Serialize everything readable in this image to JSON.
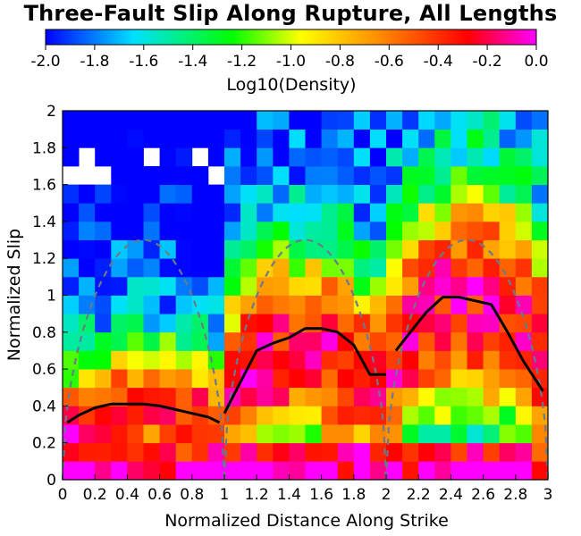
{
  "chart_data": {
    "type": "heatmap",
    "title": "Three-Fault Slip Along Rupture, All Lengths",
    "xlabel": "Normalized Distance Along Strike",
    "ylabel": "Normalized Slip",
    "xlim": [
      0,
      3
    ],
    "ylim": [
      0,
      2
    ],
    "x_ticks": [
      "0",
      "0.2",
      "0.4",
      "0.6",
      "0.8",
      "1",
      "1.2",
      "1.4",
      "1.6",
      "1.8",
      "2",
      "2.2",
      "2.4",
      "2.6",
      "2.8",
      "3"
    ],
    "y_ticks": [
      "0",
      "0.2",
      "0.4",
      "0.6",
      "0.8",
      "1",
      "1.2",
      "1.4",
      "1.6",
      "1.8",
      "2"
    ],
    "colorbar": {
      "label": "Log10(Density)",
      "range": [
        -2.0,
        0.0
      ],
      "ticks": [
        "-2.0",
        "-1.8",
        "-1.6",
        "-1.4",
        "-1.2",
        "-1.0",
        "-0.8",
        "-0.6",
        "-0.4",
        "-0.2",
        "0.0"
      ],
      "colors": [
        "#0000ff",
        "#00e0ff",
        "#00ff00",
        "#ffff00",
        "#ff8c00",
        "#ff0000",
        "#ff00ff"
      ]
    },
    "grid": {
      "nx": 30,
      "ny": 20
    },
    "mean_slip_profile": {
      "segments": [
        {
          "x": [
            0.03,
            0.1,
            0.2,
            0.3,
            0.4,
            0.5,
            0.6,
            0.7,
            0.8,
            0.9,
            0.97
          ],
          "y": [
            0.31,
            0.35,
            0.39,
            0.41,
            0.41,
            0.41,
            0.4,
            0.38,
            0.36,
            0.34,
            0.31
          ]
        },
        {
          "x": [
            1.0,
            1.1,
            1.2,
            1.3,
            1.4,
            1.5,
            1.6,
            1.7,
            1.8,
            1.9,
            2.0
          ],
          "y": [
            0.36,
            0.53,
            0.7,
            0.74,
            0.77,
            0.82,
            0.82,
            0.8,
            0.73,
            0.57,
            0.57
          ]
        },
        {
          "x": [
            2.06,
            2.15,
            2.25,
            2.35,
            2.45,
            2.55,
            2.65,
            2.75,
            2.85,
            2.97
          ],
          "y": [
            0.7,
            0.8,
            0.91,
            0.99,
            0.99,
            0.97,
            0.95,
            0.8,
            0.64,
            0.48
          ]
        }
      ]
    },
    "reference_curves": {
      "segments": [
        {
          "x0": 0,
          "x1": 1,
          "peak": 1.3
        },
        {
          "x0": 1,
          "x1": 2,
          "peak": 1.3
        },
        {
          "x0": 2,
          "x1": 3,
          "peak": 1.3
        }
      ]
    }
  }
}
